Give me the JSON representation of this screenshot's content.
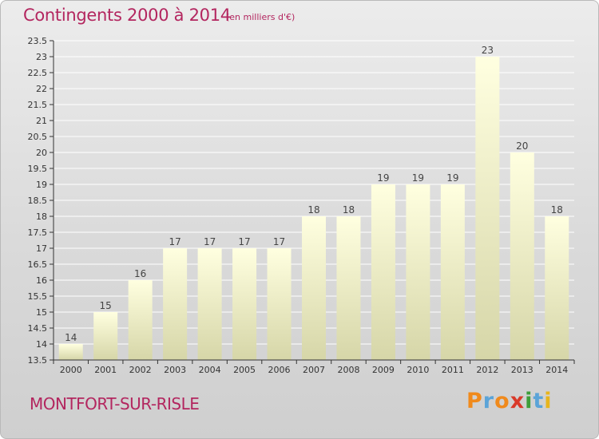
{
  "header": {
    "title": "Contingents 2000 à 2014",
    "unit": "(en milliers d'€)"
  },
  "footer": {
    "town": "MONTFORT-SUR-RISLE",
    "logo_text": "Proxiti"
  },
  "colors": {
    "accent": "#b3265f",
    "bar_top": "#ffffe0",
    "bar_bottom": "#d6d6a8",
    "axis": "#333333",
    "gridline": "#ffffff",
    "logo": [
      "#f08a1c",
      "#5ba4d8",
      "#f08a1c",
      "#d93a2a",
      "#3e9e3a",
      "#5ba4d8",
      "#e8b51c"
    ]
  },
  "chart_data": {
    "type": "bar",
    "categories": [
      "2000",
      "2001",
      "2002",
      "2003",
      "2004",
      "2005",
      "2006",
      "2007",
      "2008",
      "2009",
      "2010",
      "2011",
      "2012",
      "2013",
      "2014"
    ],
    "values": [
      14,
      15,
      16,
      17,
      17,
      17,
      17,
      18,
      18,
      19,
      19,
      19,
      23,
      20,
      18
    ],
    "value_labels": [
      "14",
      "15",
      "16",
      "17",
      "17",
      "17",
      "17",
      "18",
      "18",
      "19",
      "19",
      "19",
      "23",
      "20",
      "18"
    ],
    "ylim": [
      13.5,
      23.5
    ],
    "yticks": [
      13.5,
      14,
      14.5,
      15,
      15.5,
      16,
      16.5,
      17,
      17.5,
      18,
      18.5,
      19,
      19.5,
      20,
      20.5,
      21,
      21.5,
      22,
      22.5,
      23,
      23.5
    ],
    "ytick_labels": [
      "13.5",
      "14",
      "14.5",
      "15",
      "15.5",
      "16",
      "16.5",
      "17",
      "17.5",
      "18",
      "18.5",
      "19",
      "19.5",
      "20",
      "20.5",
      "21",
      "21.5",
      "22",
      "22.5",
      "23",
      "23.5"
    ],
    "grid": true,
    "legend": "none"
  }
}
